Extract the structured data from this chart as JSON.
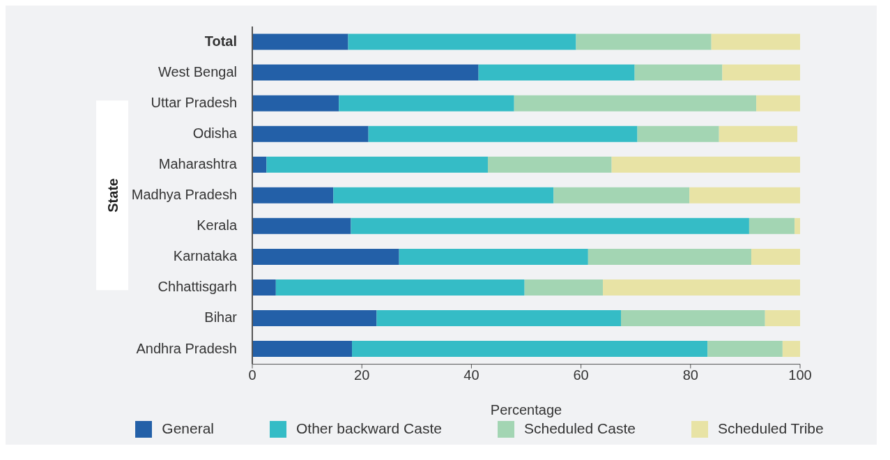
{
  "chart_data": {
    "type": "bar",
    "orientation": "horizontal",
    "stacked": true,
    "xlabel": "Percentage",
    "ylabel": "State",
    "categories": [
      "Total",
      "West Bengal",
      "Uttar Pradesh",
      "Odisha",
      "Maharashtra",
      "Madhya Pradesh",
      "Kerala",
      "Karnataka",
      "Chhattisgarh",
      "Bihar",
      "Andhra Pradesh"
    ],
    "series": [
      {
        "name": "General",
        "color": "#2360a8",
        "values": [
          17.5,
          41.3,
          15.8,
          21.2,
          2.6,
          14.8,
          18.0,
          26.8,
          4.3,
          22.7,
          18.2
        ]
      },
      {
        "name": "Other backward Caste",
        "color": "#35bcc6",
        "values": [
          41.6,
          28.5,
          32.0,
          49.1,
          40.4,
          40.2,
          72.7,
          34.5,
          45.4,
          44.6,
          64.9
        ]
      },
      {
        "name": "Scheduled Caste",
        "color": "#a3d5b3",
        "values": [
          24.7,
          16.0,
          44.2,
          14.9,
          22.6,
          24.8,
          8.3,
          29.8,
          14.3,
          26.3,
          13.7
        ]
      },
      {
        "name": "Scheduled Tribe",
        "color": "#e8e3a5",
        "values": [
          16.2,
          14.2,
          8.0,
          14.3,
          34.4,
          20.2,
          1.0,
          8.9,
          36.0,
          6.4,
          3.2
        ]
      }
    ],
    "xlim": [
      0,
      100
    ],
    "xticks": [
      0,
      20,
      40,
      60,
      80,
      100
    ],
    "grid": false,
    "legend": "bottom"
  }
}
